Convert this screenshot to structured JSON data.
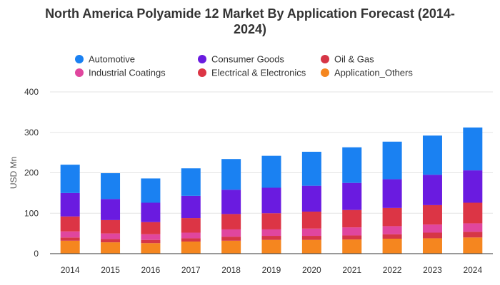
{
  "chart_data": {
    "type": "bar",
    "stacked": true,
    "title_line1": "North America Polyamide 12 Market By Application Forecast (2014-",
    "title_line2": "2024)",
    "ylabel": "USD Mn",
    "xlabel": "",
    "ylim": [
      0,
      400
    ],
    "yticks": [
      0,
      100,
      200,
      300,
      400
    ],
    "grid": true,
    "legend_position": "top",
    "categories": [
      "2014",
      "2015",
      "2016",
      "2017",
      "2018",
      "2019",
      "2020",
      "2021",
      "2022",
      "2023",
      "2024"
    ],
    "series": [
      {
        "name": "Application_Others",
        "color": "#f5861f",
        "values": [
          32,
          28,
          26,
          30,
          32,
          34,
          34,
          35,
          37,
          38,
          40
        ]
      },
      {
        "name": "Oil & Gas",
        "color": "#d63646",
        "values": [
          8,
          8,
          8,
          8,
          10,
          10,
          10,
          10,
          11,
          14,
          14
        ]
      },
      {
        "name": "Industrial Coatings",
        "color": "#e0469e",
        "values": [
          15,
          14,
          14,
          14,
          18,
          16,
          18,
          20,
          20,
          20,
          21
        ]
      },
      {
        "name": "Electrical & Electronics",
        "color": "#dc3545",
        "values": [
          37,
          33,
          30,
          36,
          38,
          40,
          42,
          43,
          45,
          48,
          51
        ]
      },
      {
        "name": "Consumer Goods",
        "color": "#6a1be0",
        "values": [
          58,
          52,
          48,
          55,
          60,
          63,
          64,
          67,
          71,
          75,
          80
        ]
      },
      {
        "name": "Automotive",
        "color": "#1a81f2",
        "values": [
          70,
          64,
          60,
          68,
          76,
          79,
          84,
          88,
          93,
          97,
          106
        ]
      }
    ],
    "legend": [
      {
        "name": "Automotive",
        "color": "#1a81f2"
      },
      {
        "name": "Consumer Goods",
        "color": "#6a1be0"
      },
      {
        "name": "Oil & Gas",
        "color": "#d63646"
      },
      {
        "name": "Industrial Coatings",
        "color": "#e0469e"
      },
      {
        "name": "Electrical & Electronics",
        "color": "#dc3545"
      },
      {
        "name": "Application_Others",
        "color": "#f5861f"
      }
    ]
  }
}
